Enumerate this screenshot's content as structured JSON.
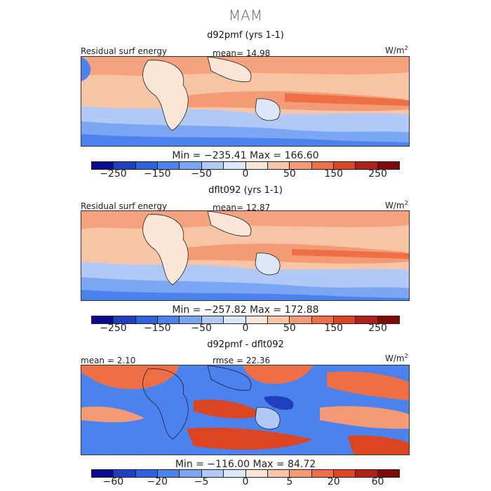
{
  "season": "MAM",
  "colorscale": [
    "#0a0a8c",
    "#1f3fbf",
    "#2f62dd",
    "#4b82ee",
    "#7aa6f4",
    "#b0c9f7",
    "#dce7fa",
    "#fbe6d8",
    "#f8c4a6",
    "#f49b75",
    "#ee6e46",
    "#dc4522",
    "#b0201a",
    "#7e0a0a"
  ],
  "panels": [
    {
      "title": "d92pmf (yrs 1-1)",
      "left_label": "Residual surf energy",
      "mid_label": "mean=  14.98",
      "units": "W/m",
      "units_sup": "2",
      "minmax": "Min = −235.41 Max = 166.60",
      "ticks": [
        "−250",
        "−150",
        "−50",
        "0",
        "50",
        "150",
        "250"
      ]
    },
    {
      "title": "dflt092 (yrs 1-1)",
      "left_label": "Residual surf energy",
      "mid_label": "mean=  12.87",
      "units": "W/m",
      "units_sup": "2",
      "minmax": "Min = −257.82 Max = 172.88",
      "ticks": [
        "−250",
        "−150",
        "−50",
        "0",
        "50",
        "150",
        "250"
      ]
    },
    {
      "title": "d92pmf - dflt092",
      "left_label": "mean =   2.10",
      "mid_label": "rmse =  22.36",
      "units": "W/m",
      "units_sup": "2",
      "minmax": "Min = −116.00 Max =  84.72",
      "ticks": [
        "−60",
        "−20",
        "−5",
        "0",
        "5",
        "20",
        "60"
      ]
    }
  ]
}
